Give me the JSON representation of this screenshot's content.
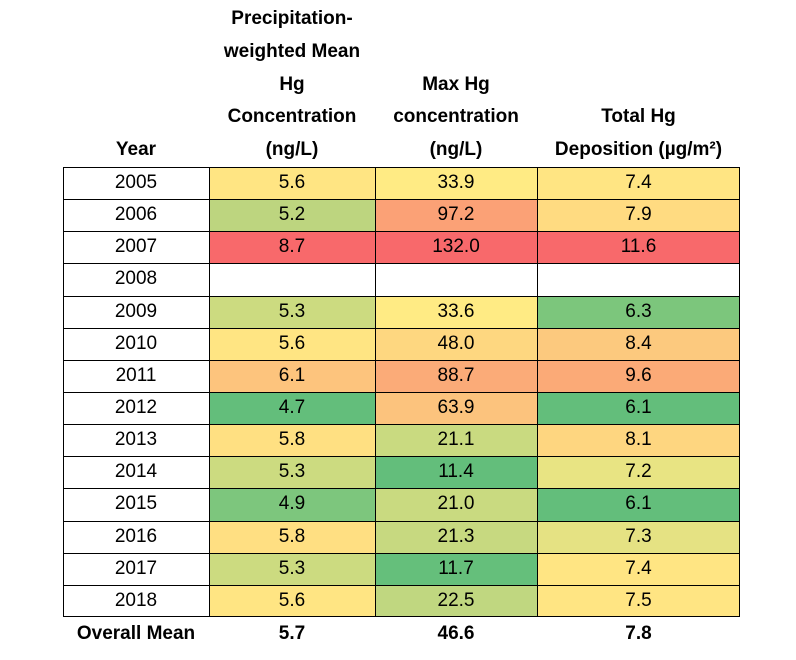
{
  "chart_data": {
    "type": "table",
    "columns": [
      "Year",
      "Precipitation-\nweighted Mean\nHg\nConcentration\n(ng/L)",
      "Max Hg\nconcentration\n(ng/L)",
      "Total Hg\nDeposition (µg/m²)"
    ],
    "rows": [
      {
        "year": "2005",
        "mean": "5.6",
        "max": "33.9",
        "dep": "7.4"
      },
      {
        "year": "2006",
        "mean": "5.2",
        "max": "97.2",
        "dep": "7.9"
      },
      {
        "year": "2007",
        "mean": "8.7",
        "max": "132.0",
        "dep": "11.6"
      },
      {
        "year": "2008",
        "mean": "",
        "max": "",
        "dep": ""
      },
      {
        "year": "2009",
        "mean": "5.3",
        "max": "33.6",
        "dep": "6.3"
      },
      {
        "year": "2010",
        "mean": "5.6",
        "max": "48.0",
        "dep": "8.4"
      },
      {
        "year": "2011",
        "mean": "6.1",
        "max": "88.7",
        "dep": "9.6"
      },
      {
        "year": "2012",
        "mean": "4.7",
        "max": "63.9",
        "dep": "6.1"
      },
      {
        "year": "2013",
        "mean": "5.8",
        "max": "21.1",
        "dep": "8.1"
      },
      {
        "year": "2014",
        "mean": "5.3",
        "max": "11.4",
        "dep": "7.2"
      },
      {
        "year": "2015",
        "mean": "4.9",
        "max": "21.0",
        "dep": "6.1"
      },
      {
        "year": "2016",
        "mean": "5.8",
        "max": "21.3",
        "dep": "7.3"
      },
      {
        "year": "2017",
        "mean": "5.3",
        "max": "11.7",
        "dep": "7.4"
      },
      {
        "year": "2018",
        "mean": "5.6",
        "max": "22.5",
        "dep": "7.5"
      }
    ],
    "footer": {
      "label": "Overall Mean",
      "mean": "5.7",
      "max": "46.6",
      "dep": "7.8"
    },
    "cell_colors": {
      "mean": [
        "#FFE583",
        "#BDD57F",
        "#F8696B",
        "#FFFFFF",
        "#CCDB80",
        "#FFE583",
        "#FDC47D",
        "#63BE7B",
        "#FFE082",
        "#CCDB80",
        "#7DC67D",
        "#FFDF82",
        "#CCDB80",
        "#FFE583"
      ],
      "max": [
        "#FFEB84",
        "#FBA176",
        "#F8696B",
        "#FFFFFF",
        "#FFEB84",
        "#FED780",
        "#FBAB78",
        "#FCC37D",
        "#C9DA80",
        "#63BE7B",
        "#C9DA80",
        "#C7D980",
        "#65BF7B",
        "#C0D780"
      ],
      "dep": [
        "#FFE583",
        "#FFDB81",
        "#F8696B",
        "#FFFFFF",
        "#7CC67C",
        "#FCC97E",
        "#FBAA77",
        "#63BE7B",
        "#FED680",
        "#E8E483",
        "#63BE7B",
        "#E5E283",
        "#FFE583",
        "#FFE583"
      ]
    }
  }
}
